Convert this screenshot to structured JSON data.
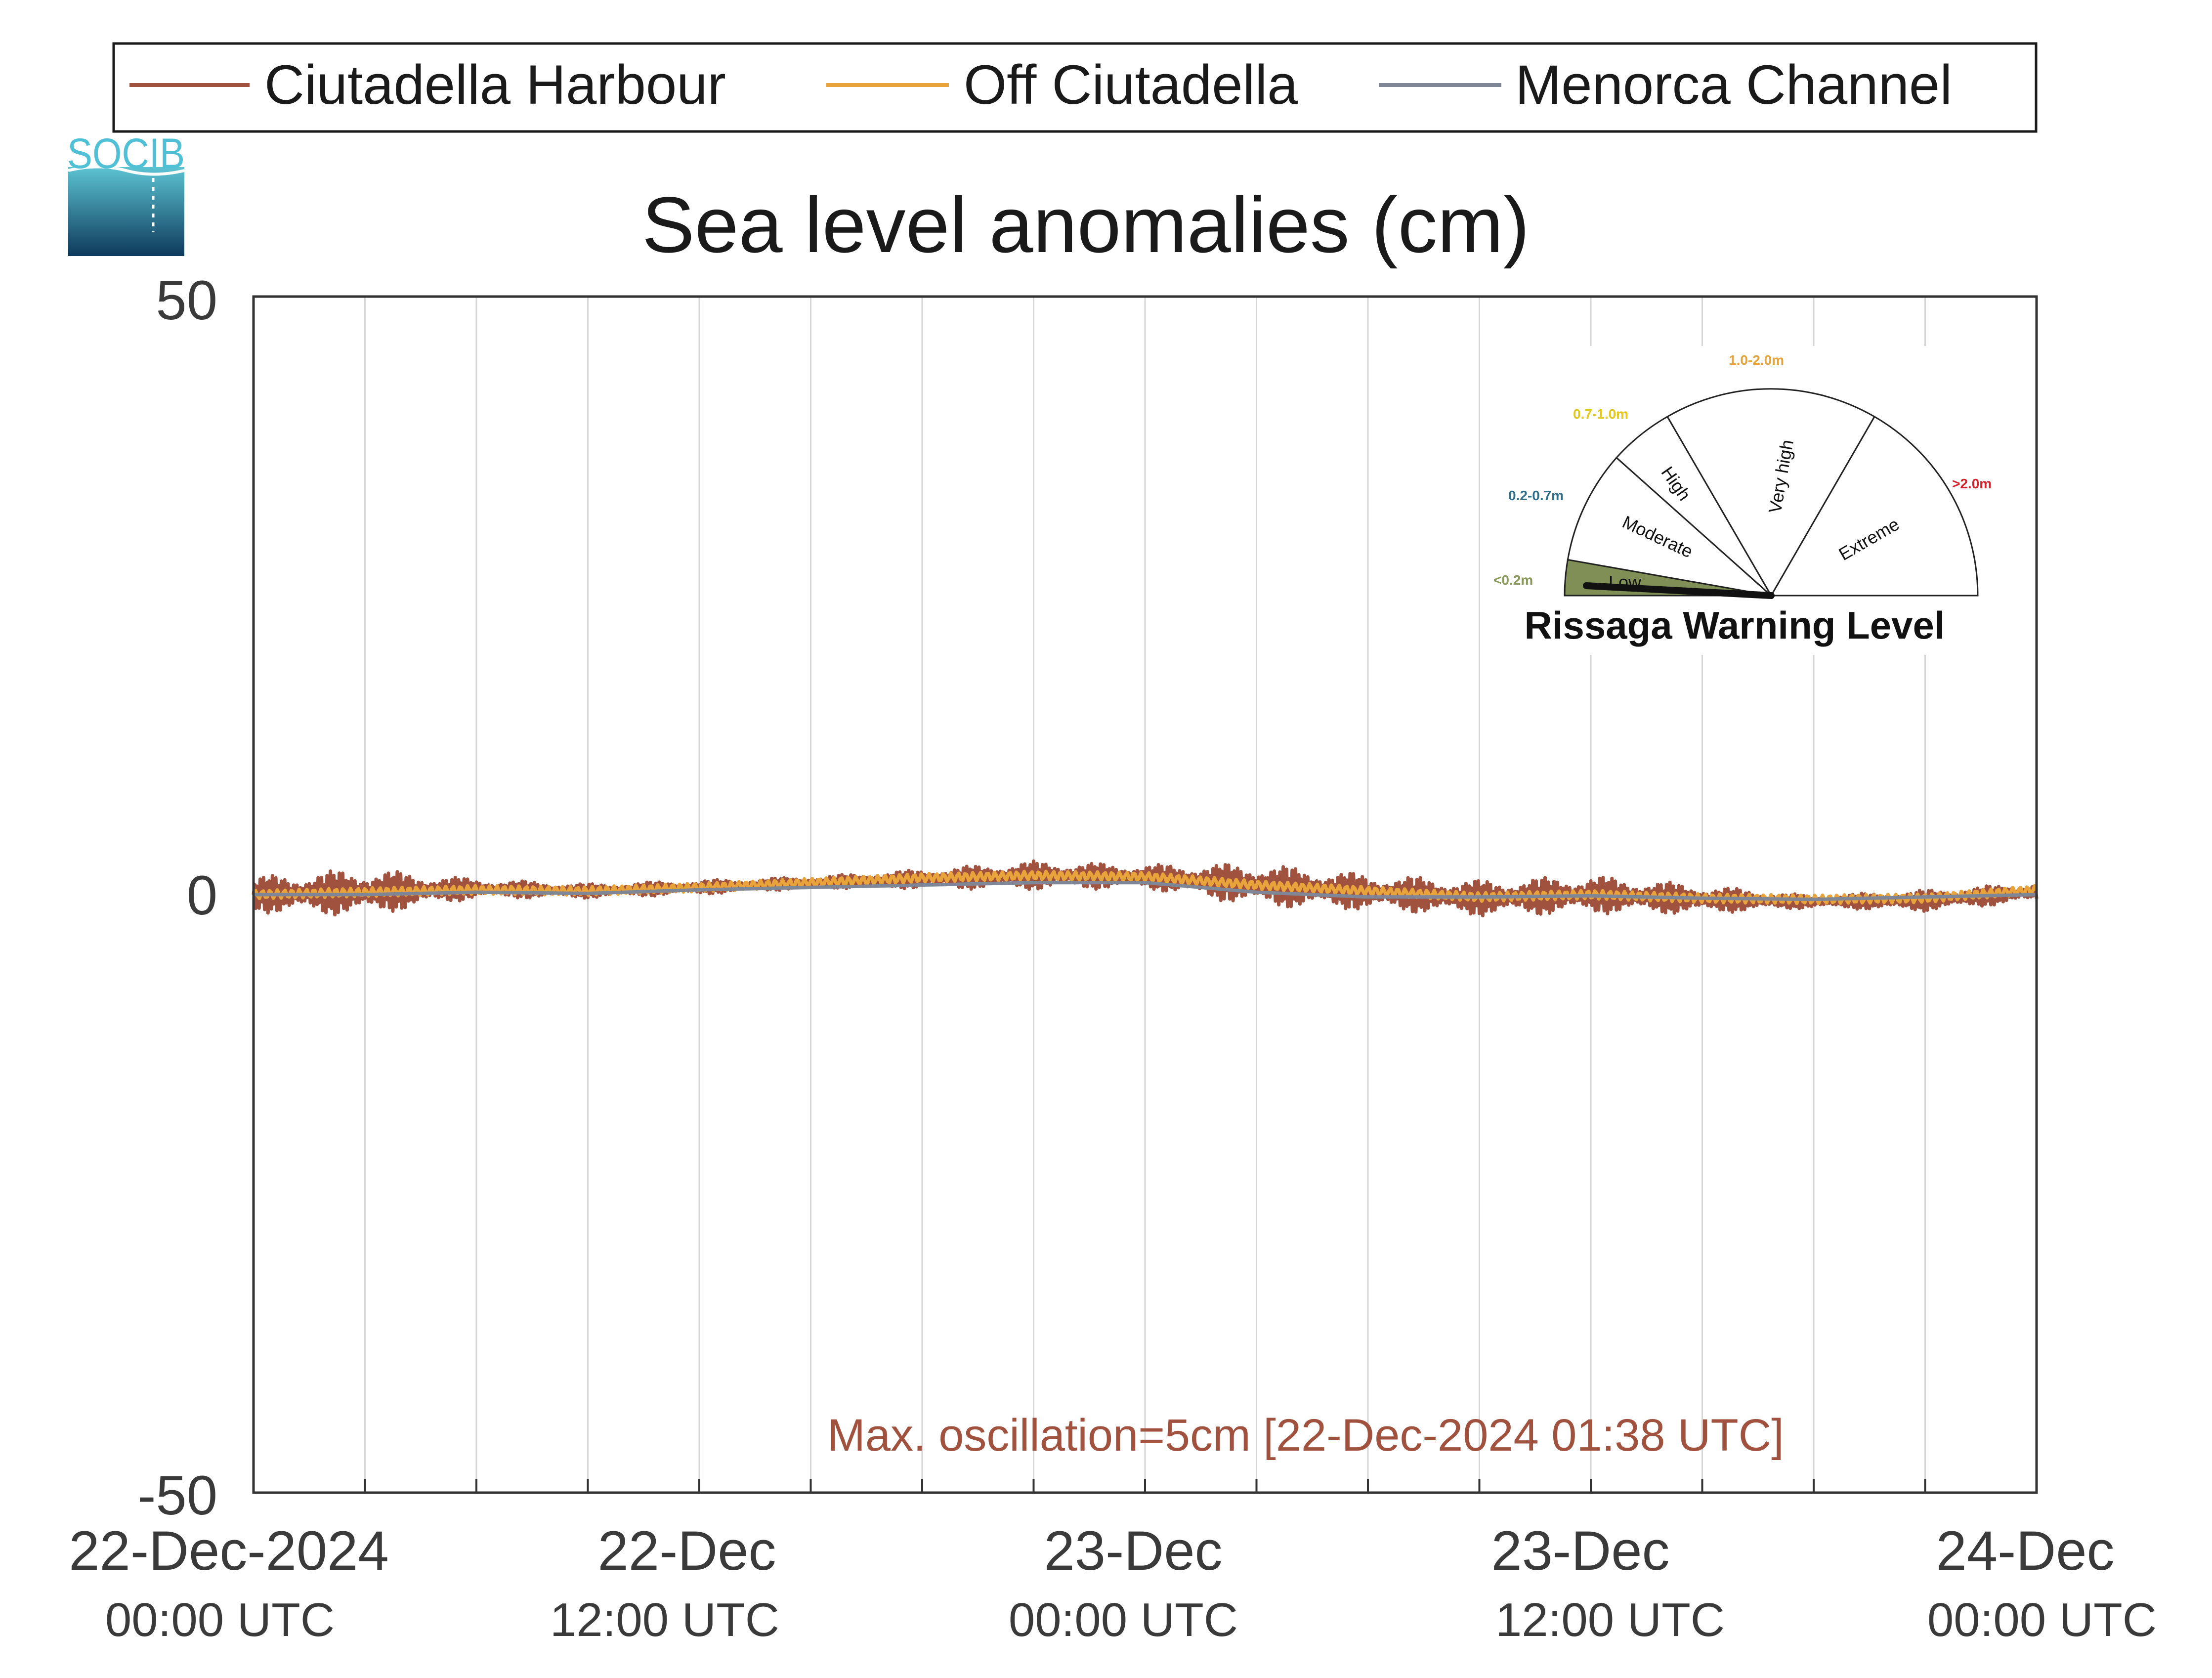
{
  "logo": {
    "text": "SOCIB"
  },
  "legend": [
    {
      "name": "Ciutadella Harbour",
      "color": "#a0523f"
    },
    {
      "name": "Off Ciutadella",
      "color": "#e8a33a"
    },
    {
      "name": "Menorca Channel",
      "color": "#7f8796"
    }
  ],
  "chart_data": {
    "type": "line",
    "title": "Sea level anomalies (cm)",
    "xlabel": "",
    "ylabel": "",
    "ylim": [
      -50,
      50
    ],
    "yticks": [
      "50",
      "0",
      "-50"
    ],
    "xlim": [
      "22-Dec-2024 00:00 UTC",
      "24-Dec-2024 00:00 UTC"
    ],
    "xticks": [
      {
        "date": "22-Dec-2024",
        "time": "00:00 UTC"
      },
      {
        "date": "22-Dec",
        "time": "12:00 UTC"
      },
      {
        "date": "23-Dec",
        "time": "00:00 UTC"
      },
      {
        "date": "23-Dec",
        "time": "12:00 UTC"
      },
      {
        "date": "24-Dec",
        "time": "00:00 UTC"
      }
    ],
    "grid": "vertical every 3 hours",
    "x_hours": [
      0,
      3,
      6,
      9,
      12,
      15,
      18,
      21,
      24,
      27,
      30,
      33,
      36,
      39,
      42,
      45,
      48
    ],
    "series": [
      {
        "name": "Ciutadella Harbour",
        "color": "#a0523f",
        "values": [
          0,
          0.2,
          0.5,
          0.3,
          0.6,
          1.0,
          1.3,
          1.6,
          1.5,
          0.8,
          0.2,
          -0.3,
          0,
          -0.4,
          -0.6,
          -0.5,
          0.2
        ],
        "amplitude_cm": [
          1.5,
          2.0,
          0.8,
          0.6,
          0.6,
          0.5,
          0.8,
          1.2,
          1.0,
          1.8,
          1.5,
          1.5,
          1.6,
          1.2,
          0.5,
          0.9,
          0.8
        ]
      },
      {
        "name": "Off Ciutadella",
        "color": "#e8a33a",
        "values": [
          0,
          0.2,
          0.4,
          0.3,
          0.6,
          1.0,
          1.4,
          1.6,
          1.5,
          0.8,
          0.3,
          -0.2,
          0,
          -0.3,
          -0.4,
          -0.3,
          0.4
        ]
      },
      {
        "name": "Menorca Channel",
        "color": "#7f8796",
        "values": [
          0,
          0,
          0.2,
          0.1,
          0.4,
          0.6,
          0.8,
          1.0,
          1.0,
          0.2,
          -0.2,
          -0.2,
          -0.1,
          -0.3,
          -0.4,
          -0.2,
          0
        ]
      }
    ],
    "annotation": "Max. oscillation=5cm [22-Dec-2024 01:38 UTC]"
  },
  "warning_gauge": {
    "title": "Rissaga Warning Level",
    "current_level": "Low",
    "sectors": [
      {
        "label": "Low",
        "range": "<0.2m",
        "range_color": "#8a9a5b"
      },
      {
        "label": "Moderate",
        "range": "0.2-0.7m",
        "range_color": "#2f6f8a"
      },
      {
        "label": "High",
        "range": "0.7-1.0m",
        "range_color": "#e5c81b"
      },
      {
        "label": "Very high",
        "range": "1.0-2.0m",
        "range_color": "#e8a33a"
      },
      {
        "label": "Extreme",
        "range": ">2.0m",
        "range_color": "#d7202a"
      }
    ],
    "active_fill": "#7f8f55"
  }
}
